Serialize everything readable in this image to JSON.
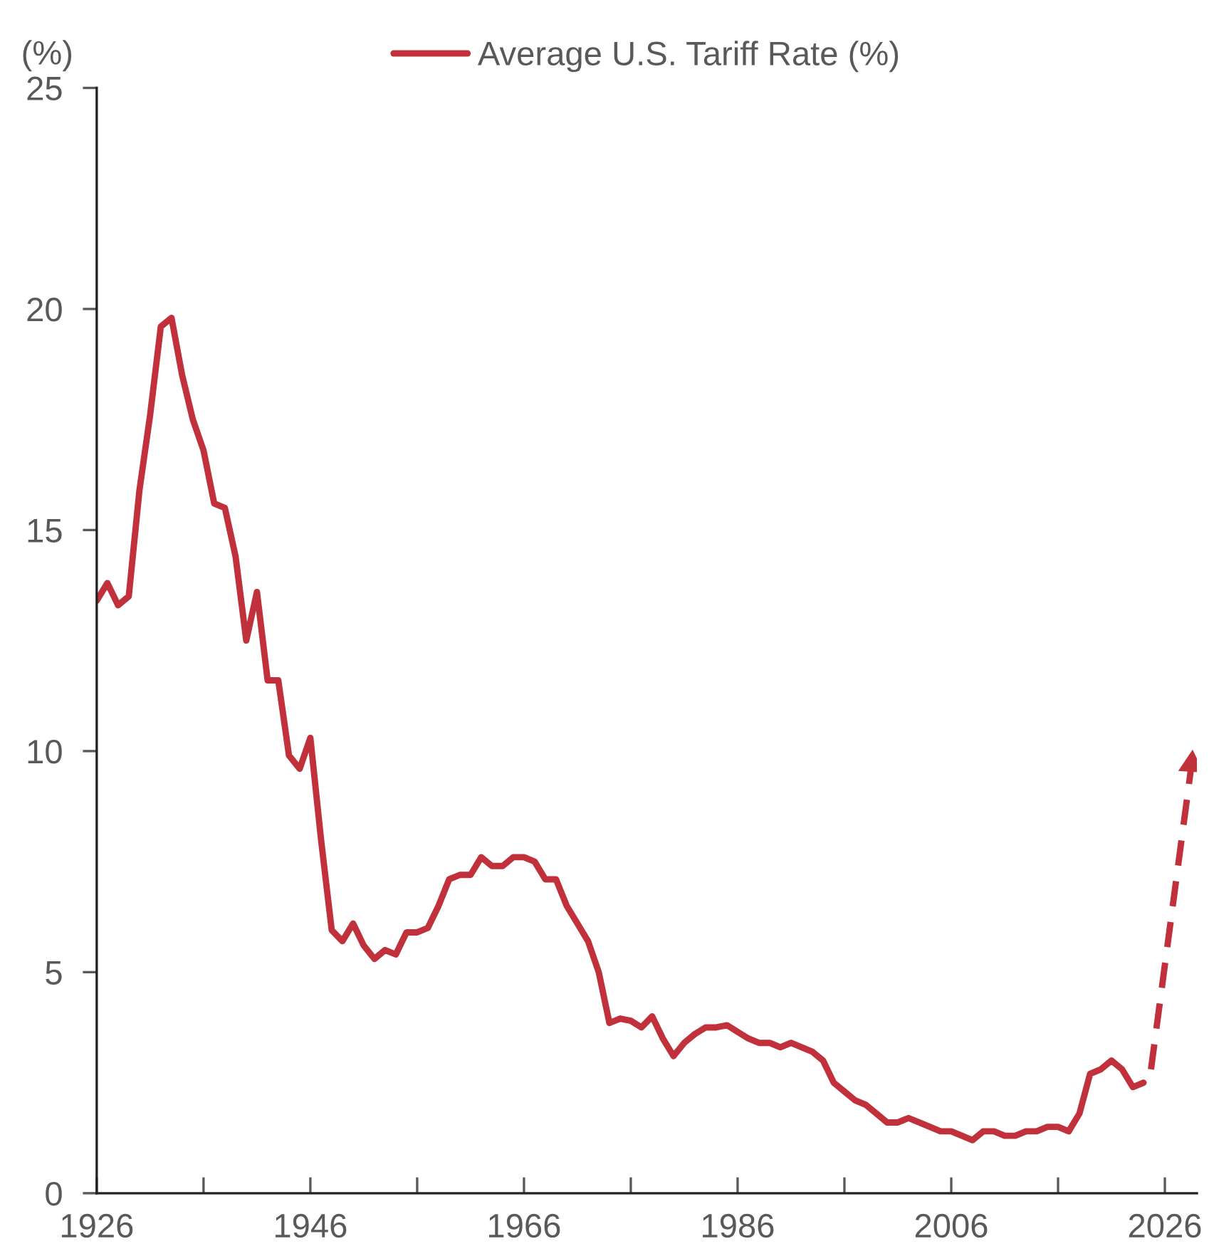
{
  "chart_data": {
    "type": "line",
    "ylabel": "(%)",
    "x": [
      1926,
      1927,
      1928,
      1929,
      1930,
      1931,
      1932,
      1933,
      1934,
      1935,
      1936,
      1937,
      1938,
      1939,
      1940,
      1941,
      1942,
      1943,
      1944,
      1945,
      1946,
      1947,
      1948,
      1949,
      1950,
      1951,
      1952,
      1953,
      1954,
      1955,
      1956,
      1957,
      1958,
      1959,
      1960,
      1961,
      1962,
      1963,
      1964,
      1965,
      1966,
      1967,
      1968,
      1969,
      1970,
      1971,
      1972,
      1973,
      1974,
      1975,
      1976,
      1977,
      1978,
      1979,
      1980,
      1981,
      1982,
      1983,
      1984,
      1985,
      1986,
      1987,
      1988,
      1989,
      1990,
      1991,
      1992,
      1993,
      1994,
      1995,
      1996,
      1997,
      1998,
      1999,
      2000,
      2001,
      2002,
      2003,
      2004,
      2005,
      2006,
      2007,
      2008,
      2009,
      2010,
      2011,
      2012,
      2013,
      2014,
      2015,
      2016,
      2017,
      2018,
      2019,
      2020,
      2021,
      2022,
      2023,
      2024
    ],
    "series": [
      {
        "name": "Average U.S. Tariff Rate (%)",
        "color": "#c0313b",
        "line_style": "solid",
        "values": [
          13.4,
          13.8,
          13.3,
          13.5,
          15.9,
          17.6,
          19.6,
          19.8,
          18.5,
          17.5,
          16.8,
          15.6,
          15.5,
          14.4,
          12.5,
          13.6,
          11.6,
          11.6,
          9.9,
          9.6,
          10.3,
          8.0,
          5.95,
          5.7,
          6.1,
          5.6,
          5.3,
          5.5,
          5.4,
          5.9,
          5.9,
          6.0,
          6.5,
          7.1,
          7.2,
          7.2,
          7.6,
          7.4,
          7.4,
          7.6,
          7.6,
          7.5,
          7.1,
          7.1,
          6.5,
          6.1,
          5.7,
          5.0,
          3.85,
          3.95,
          3.9,
          3.75,
          4.0,
          3.5,
          3.1,
          3.4,
          3.6,
          3.75,
          3.75,
          3.8,
          3.65,
          3.5,
          3.4,
          3.4,
          3.3,
          3.4,
          3.3,
          3.2,
          3.0,
          2.5,
          2.3,
          2.1,
          2.0,
          1.8,
          1.6,
          1.6,
          1.7,
          1.6,
          1.5,
          1.4,
          1.4,
          1.3,
          1.2,
          1.4,
          1.4,
          1.3,
          1.3,
          1.4,
          1.4,
          1.5,
          1.5,
          1.4,
          1.8,
          2.7,
          2.8,
          3.0,
          2.8,
          2.4,
          2.5
        ]
      },
      {
        "color": "#c0313b",
        "line_style": "dashed",
        "marker": "triangle",
        "x": [
          2024.7,
          2028.5
        ],
        "values": [
          2.8,
          9.7
        ]
      }
    ],
    "xlim": [
      1926,
      2029
    ],
    "xticks": [
      1926,
      {
        "value": 1936,
        "label": null
      },
      1946,
      {
        "value": 1956,
        "label": null
      },
      1966,
      {
        "value": 1976,
        "label": null
      },
      1986,
      {
        "value": 1996,
        "label": null
      },
      2006,
      {
        "value": 2016,
        "label": null
      },
      2026
    ],
    "ylim": [
      0,
      25
    ],
    "yticks": [
      0,
      5,
      10,
      15,
      20,
      25
    ],
    "grid": false,
    "legend": "top",
    "marker": "none"
  }
}
